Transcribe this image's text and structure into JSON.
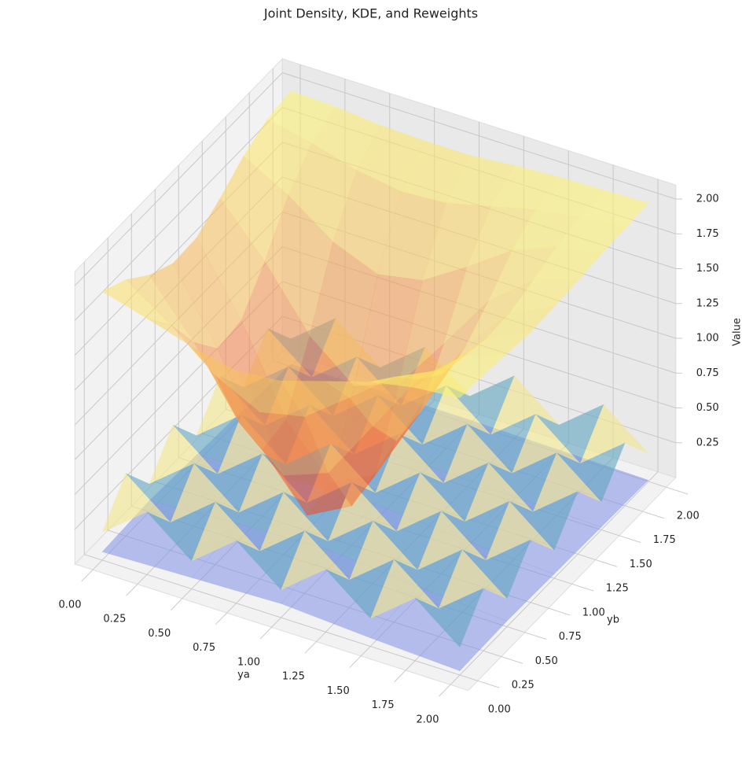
{
  "chart_data": {
    "type": "surface3d",
    "title": "Joint Density, KDE, and Reweights",
    "xlabel": "ya",
    "ylabel": "yb",
    "zlabel": "Value",
    "xlim": [
      -0.1,
      2.1
    ],
    "ylim": [
      -0.1,
      2.1
    ],
    "zlim": [
      0,
      2.1
    ],
    "xticks": [
      {
        "value": 0,
        "label": "0.00"
      },
      {
        "value": 0.25,
        "label": "0.25"
      },
      {
        "value": 0.5,
        "label": "0.50"
      },
      {
        "value": 0.75,
        "label": "0.75"
      },
      {
        "value": 1,
        "label": "1.00"
      },
      {
        "value": 1.25,
        "label": "1.25"
      },
      {
        "value": 1.5,
        "label": "1.50"
      },
      {
        "value": 1.75,
        "label": "1.75"
      },
      {
        "value": 2,
        "label": "2.00"
      }
    ],
    "yticks": [
      {
        "value": 0,
        "label": "0.00"
      },
      {
        "value": 0.25,
        "label": "0.25"
      },
      {
        "value": 0.5,
        "label": "0.50"
      },
      {
        "value": 0.75,
        "label": "0.75"
      },
      {
        "value": 1,
        "label": "1.00"
      },
      {
        "value": 1.25,
        "label": "1.25"
      },
      {
        "value": 1.5,
        "label": "1.50"
      },
      {
        "value": 1.75,
        "label": "1.75"
      },
      {
        "value": 2,
        "label": "2.00"
      }
    ],
    "zticks": [
      {
        "value": 0.25,
        "label": "0.25"
      },
      {
        "value": 0.5,
        "label": "0.50"
      },
      {
        "value": 0.75,
        "label": "0.75"
      },
      {
        "value": 1,
        "label": "1.00"
      },
      {
        "value": 1.25,
        "label": "1.25"
      },
      {
        "value": 1.5,
        "label": "1.50"
      },
      {
        "value": 1.75,
        "label": "1.75"
      },
      {
        "value": 2,
        "label": "2.00"
      }
    ],
    "grid": true,
    "surfaces": [
      {
        "x": [
          0,
          0.5,
          1,
          1.5,
          2
        ],
        "y": [
          0,
          0.5,
          1,
          1.5,
          2
        ],
        "colors": [
          "#7f8fe6"
        ],
        "alpha": 0.55,
        "z": [
          [
            0.06,
            0.08,
            0.1,
            0.06,
            0.03
          ],
          [
            0.08,
            0.12,
            0.14,
            0.08,
            0.04
          ],
          [
            0.06,
            0.1,
            0.12,
            0.07,
            0.03
          ],
          [
            0.04,
            0.05,
            0.06,
            0.04,
            0.02
          ],
          [
            0.02,
            0.03,
            0.03,
            0.02,
            0.01
          ]
        ]
      },
      {
        "x": [
          0,
          0.25,
          0.5,
          0.75,
          1,
          1.25,
          1.5,
          1.75,
          2
        ],
        "y": [
          0,
          0.25,
          0.5,
          0.75,
          1,
          1.25,
          1.5,
          1.75,
          2
        ],
        "colors": [
          "#f2e68a",
          "#5fa5c0"
        ],
        "alpha": 0.6,
        "z": [
          [
            0.2,
            0.45,
            0.2,
            0.45,
            0.2,
            0.45,
            0.2,
            0.45,
            0.2
          ],
          [
            0.45,
            0.2,
            0.45,
            0.2,
            0.45,
            0.2,
            0.45,
            0.2,
            0.45
          ],
          [
            0.2,
            0.45,
            0.2,
            0.45,
            0.2,
            0.45,
            0.2,
            0.45,
            0.2
          ],
          [
            0.45,
            0.2,
            0.45,
            0.2,
            0.45,
            0.2,
            0.45,
            0.2,
            0.45
          ],
          [
            0.2,
            0.45,
            0.2,
            0.45,
            0.2,
            0.45,
            0.2,
            0.45,
            0.2
          ],
          [
            0.45,
            0.2,
            0.45,
            0.2,
            0.45,
            0.2,
            0.45,
            0.2,
            0.45
          ],
          [
            0.2,
            0.45,
            0.2,
            0.45,
            0.2,
            0.45,
            0.2,
            0.45,
            0.2
          ],
          [
            0.45,
            0.2,
            0.45,
            0.2,
            0.45,
            0.2,
            0.45,
            0.2,
            0.45
          ],
          [
            0.2,
            0.45,
            0.2,
            0.45,
            0.2,
            0.45,
            0.2,
            0.45,
            0.2
          ]
        ]
      },
      {
        "x": [
          0,
          0.25,
          0.5,
          0.75,
          1,
          1.25,
          1.5,
          1.75,
          2
        ],
        "y": [
          0,
          0.25,
          0.5,
          0.75,
          1,
          1.25,
          1.5,
          1.75,
          2
        ],
        "colors": [
          "#e8302a",
          "#ffff70"
        ],
        "alpha": 0.55,
        "z": [
          [
            1.93,
            1.84,
            1.74,
            1.67,
            1.7,
            1.8,
            1.9,
            1.96,
            1.99
          ],
          [
            1.84,
            1.62,
            1.36,
            1.2,
            1.27,
            1.51,
            1.76,
            1.91,
            1.98
          ],
          [
            1.7,
            1.32,
            0.85,
            0.57,
            0.69,
            1.13,
            1.57,
            1.84,
            1.96
          ],
          [
            1.61,
            1.1,
            0.48,
            0.11,
            0.28,
            0.85,
            1.43,
            1.79,
            1.94
          ],
          [
            1.62,
            1.13,
            0.52,
            0.17,
            0.33,
            0.88,
            1.45,
            1.8,
            1.95
          ],
          [
            1.73,
            1.38,
            0.95,
            0.69,
            0.81,
            1.2,
            1.61,
            1.86,
            1.96
          ],
          [
            1.86,
            1.68,
            1.45,
            1.32,
            1.38,
            1.58,
            1.8,
            1.93,
            1.98
          ],
          [
            1.95,
            1.88,
            1.79,
            1.74,
            1.76,
            1.84,
            1.92,
            1.97,
            1.99
          ],
          [
            1.98,
            1.97,
            1.94,
            1.93,
            1.93,
            1.96,
            1.98,
            1.99,
            2.0
          ]
        ]
      }
    ]
  }
}
